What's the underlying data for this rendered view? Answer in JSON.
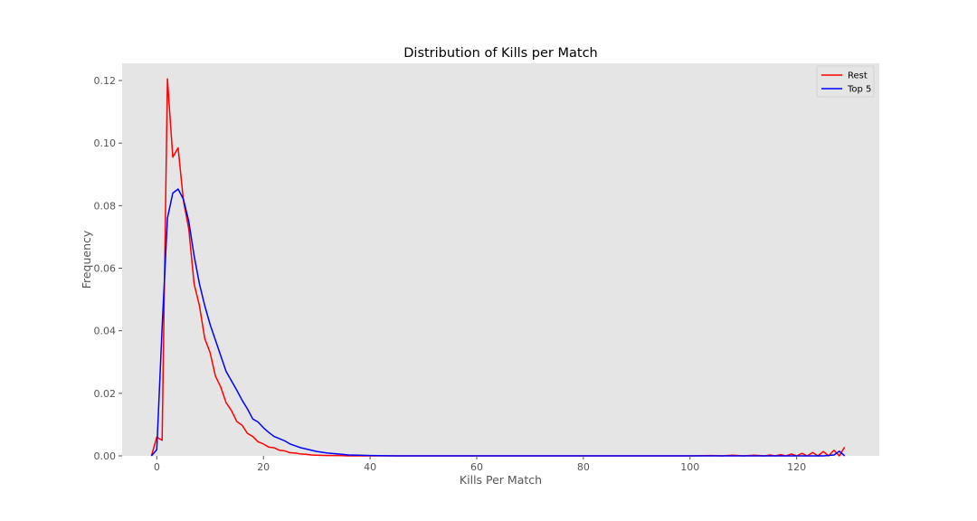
{
  "chart_data": {
    "type": "line",
    "title": "Distribution of Kills per Match",
    "xlabel": "Kills Per Match",
    "ylabel": "Frequency",
    "xlim": [
      -6.5,
      135.5
    ],
    "ylim": [
      0,
      0.1255
    ],
    "xticks": [
      0,
      20,
      40,
      60,
      80,
      100,
      120
    ],
    "yticks": [
      0.0,
      0.02,
      0.04,
      0.06,
      0.08,
      0.1,
      0.12
    ],
    "ytick_labels": [
      "0.00",
      "0.02",
      "0.04",
      "0.06",
      "0.08",
      "0.10",
      "0.12"
    ],
    "grid": false,
    "background": "#e5e5e5",
    "legend_position": "top-right",
    "series": [
      {
        "name": "Rest",
        "color": "#ff0000",
        "x": [
          -1,
          0,
          1,
          2,
          3,
          4,
          5,
          6,
          7,
          8,
          9,
          10,
          11,
          12,
          13,
          14,
          15,
          16,
          17,
          18,
          19,
          20,
          21,
          22,
          23,
          24,
          25,
          26,
          27,
          28,
          29,
          30,
          32,
          34,
          36,
          40,
          45,
          50,
          60,
          80,
          100,
          104,
          106,
          108,
          110,
          112,
          114,
          115,
          116,
          117,
          118,
          119,
          120,
          121,
          122,
          123,
          124,
          125,
          126,
          127,
          128,
          129
        ],
        "y": [
          0.0,
          0.006,
          0.005,
          0.1205,
          0.0955,
          0.0985,
          0.0815,
          0.0725,
          0.055,
          0.048,
          0.0375,
          0.033,
          0.0255,
          0.022,
          0.017,
          0.0145,
          0.011,
          0.0098,
          0.0072,
          0.0062,
          0.0045,
          0.0038,
          0.0028,
          0.0026,
          0.0018,
          0.0016,
          0.001,
          0.0009,
          0.0006,
          0.0005,
          0.0003,
          0.0002,
          0.0001,
          0.0001,
          0.0,
          0.0,
          0.0,
          0.0,
          0.0,
          0.0,
          0.0,
          0.0001,
          0.0,
          0.0002,
          0.0,
          0.0002,
          0.0,
          0.0003,
          0.0,
          0.0004,
          0.0,
          0.0006,
          0.0,
          0.0008,
          0.0,
          0.0011,
          0.0,
          0.0014,
          0.0,
          0.0018,
          0.0,
          0.0028
        ]
      },
      {
        "name": "Top 5",
        "color": "#0000ff",
        "x": [
          -1,
          0,
          1,
          2,
          3,
          4,
          5,
          6,
          7,
          8,
          9,
          10,
          11,
          12,
          13,
          14,
          15,
          16,
          17,
          18,
          19,
          20,
          21,
          22,
          23,
          24,
          25,
          26,
          27,
          28,
          29,
          30,
          32,
          34,
          36,
          38,
          40,
          45,
          50,
          60,
          80,
          100,
          120,
          125,
          127,
          128,
          129
        ],
        "y": [
          0.0,
          0.002,
          0.041,
          0.076,
          0.084,
          0.0853,
          0.082,
          0.075,
          0.064,
          0.055,
          0.048,
          0.042,
          0.037,
          0.032,
          0.027,
          0.024,
          0.021,
          0.0178,
          0.015,
          0.0118,
          0.0108,
          0.009,
          0.0075,
          0.0062,
          0.0055,
          0.0048,
          0.0038,
          0.0032,
          0.0026,
          0.0022,
          0.0018,
          0.0014,
          0.0009,
          0.0006,
          0.0003,
          0.0002,
          0.0001,
          0.0,
          0.0,
          0.0,
          0.0,
          0.0,
          0.0,
          0.0,
          0.0003,
          0.0015,
          0.0
        ]
      }
    ]
  }
}
